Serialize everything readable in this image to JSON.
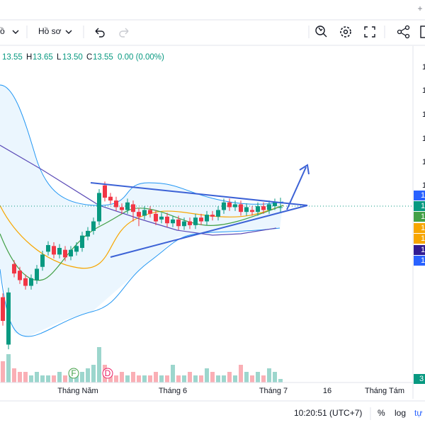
{
  "toolbar": {
    "chart_type": "ồ",
    "profile": "Hồ sơ"
  },
  "ohlc": {
    "open": "13.55",
    "h_label": "H",
    "high": "13.65",
    "l_label": "L",
    "low": "13.50",
    "c_label": "C",
    "close": "13.55",
    "change": "0.00 (0.00%)"
  },
  "chart": {
    "ylim": [
      11.7,
      15.25
    ],
    "candles": [
      [
        12.6,
        12.64,
        12.3,
        12.35
      ],
      [
        12.1,
        12.7,
        12.05,
        12.65
      ],
      [
        12.95,
        12.99,
        12.81,
        12.85
      ],
      [
        12.88,
        12.92,
        12.74,
        12.78
      ],
      [
        12.8,
        12.84,
        12.68,
        12.72
      ],
      [
        12.72,
        12.84,
        12.68,
        12.8
      ],
      [
        12.78,
        12.94,
        12.74,
        12.9
      ],
      [
        12.92,
        13.09,
        12.88,
        13.05
      ],
      [
        13.08,
        13.19,
        13.04,
        13.15
      ],
      [
        13.14,
        13.18,
        13.01,
        13.05
      ],
      [
        13.05,
        13.16,
        13.01,
        13.12
      ],
      [
        13.1,
        13.14,
        12.98,
        13.02
      ],
      [
        13.03,
        13.14,
        12.99,
        13.1
      ],
      [
        13.08,
        13.18,
        13.04,
        13.14
      ],
      [
        13.12,
        13.29,
        13.08,
        13.25
      ],
      [
        13.24,
        13.34,
        13.2,
        13.3
      ],
      [
        13.3,
        13.44,
        13.26,
        13.4
      ],
      [
        13.4,
        13.74,
        13.36,
        13.7
      ],
      [
        13.78,
        13.82,
        13.61,
        13.65
      ],
      [
        13.66,
        13.7,
        13.58,
        13.62
      ],
      [
        13.62,
        13.66,
        13.51,
        13.55
      ],
      [
        13.55,
        13.59,
        13.48,
        13.52
      ],
      [
        13.52,
        13.64,
        13.48,
        13.6
      ],
      [
        13.58,
        13.62,
        13.4,
        13.5
      ],
      [
        13.5,
        13.54,
        13.35,
        13.45
      ],
      [
        13.46,
        13.56,
        13.42,
        13.52
      ],
      [
        13.52,
        13.56,
        13.44,
        13.48
      ],
      [
        13.48,
        13.52,
        13.36,
        13.4
      ],
      [
        13.42,
        13.49,
        13.38,
        13.45
      ],
      [
        13.45,
        13.49,
        13.34,
        13.38
      ],
      [
        13.38,
        13.46,
        13.34,
        13.42
      ],
      [
        13.42,
        13.46,
        13.31,
        13.35
      ],
      [
        13.35,
        13.44,
        13.31,
        13.4
      ],
      [
        13.4,
        13.44,
        13.32,
        13.36
      ],
      [
        13.36,
        13.48,
        13.32,
        13.44
      ],
      [
        13.44,
        13.48,
        13.36,
        13.4
      ],
      [
        13.4,
        13.51,
        13.36,
        13.47
      ],
      [
        13.47,
        13.51,
        13.41,
        13.45
      ],
      [
        13.45,
        13.56,
        13.41,
        13.52
      ],
      [
        13.52,
        13.64,
        13.48,
        13.6
      ],
      [
        13.6,
        13.64,
        13.51,
        13.55
      ],
      [
        13.55,
        13.62,
        13.51,
        13.58
      ],
      [
        13.58,
        13.62,
        13.46,
        13.5
      ],
      [
        13.5,
        13.59,
        13.46,
        13.55
      ],
      [
        13.52,
        13.56,
        13.46,
        13.5
      ],
      [
        13.5,
        13.6,
        13.46,
        13.56
      ],
      [
        13.56,
        13.6,
        13.48,
        13.52
      ],
      [
        13.52,
        13.62,
        13.48,
        13.58
      ],
      [
        13.56,
        13.64,
        13.52,
        13.6
      ],
      [
        13.55,
        13.65,
        13.5,
        13.55
      ]
    ],
    "vlim": [
      0,
      10
    ],
    "volume": [
      6,
      8,
      4,
      3,
      3,
      2,
      3,
      2,
      2,
      2,
      3,
      2,
      2,
      3,
      3,
      4,
      5,
      10,
      5,
      3,
      2,
      3,
      2,
      3,
      2,
      2,
      2,
      3,
      2,
      2,
      5,
      2,
      2,
      3,
      2,
      2,
      4,
      3,
      2,
      2,
      3,
      2,
      5,
      3,
      2,
      3,
      2,
      4,
      3,
      1
    ],
    "markers": [
      "F",
      "D"
    ],
    "x_labels": [
      "Tháng Năm",
      "Tháng 6",
      "Tháng 7",
      "16",
      "Tháng Tám"
    ],
    "axis_labels": [
      "1",
      "1",
      "1",
      "1",
      "1",
      "1"
    ],
    "badges": [
      "1",
      "1",
      "1",
      "1",
      "1",
      "1",
      "1"
    ],
    "volume_badge": "3"
  },
  "status": {
    "time": "10:20:51 (UTC+7)",
    "percent": "%",
    "log": "log",
    "auto": "tự"
  }
}
